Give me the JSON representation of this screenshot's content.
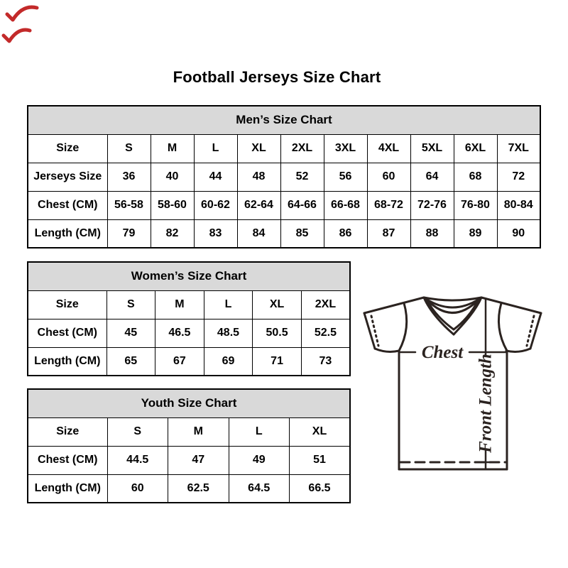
{
  "page": {
    "title": "Football Jerseys Size Chart"
  },
  "tables": {
    "men": {
      "title": "Men’s Size Chart",
      "rows": [
        [
          "Size",
          "S",
          "M",
          "L",
          "XL",
          "2XL",
          "3XL",
          "4XL",
          "5XL",
          "6XL",
          "7XL"
        ],
        [
          "Jerseys Size",
          "36",
          "40",
          "44",
          "48",
          "52",
          "56",
          "60",
          "64",
          "68",
          "72"
        ],
        [
          "Chest (CM)",
          "56-58",
          "58-60",
          "60-62",
          "62-64",
          "64-66",
          "66-68",
          "68-72",
          "72-76",
          "76-80",
          "80-84"
        ],
        [
          "Length (CM)",
          "79",
          "82",
          "83",
          "84",
          "85",
          "86",
          "87",
          "88",
          "89",
          "90"
        ]
      ]
    },
    "women": {
      "title": "Women’s Size Chart",
      "rows": [
        [
          "Size",
          "S",
          "M",
          "L",
          "XL",
          "2XL"
        ],
        [
          "Chest (CM)",
          "45",
          "46.5",
          "48.5",
          "50.5",
          "52.5"
        ],
        [
          "Length (CM)",
          "65",
          "67",
          "69",
          "71",
          "73"
        ]
      ]
    },
    "youth": {
      "title": "Youth Size Chart",
      "rows": [
        [
          "Size",
          "S",
          "M",
          "L",
          "XL"
        ],
        [
          "Chest (CM)",
          "44.5",
          "47",
          "49",
          "51"
        ],
        [
          "Length (CM)",
          "60",
          "62.5",
          "64.5",
          "66.5"
        ]
      ]
    }
  },
  "diagram": {
    "chest_label": "Chest",
    "front_length_label": "Front Length"
  },
  "colors": {
    "table_header_bg": "#d9d9d9",
    "table_border": "#000000",
    "jersey_line": "#2b2320",
    "red_mark": "#c32a2a"
  }
}
